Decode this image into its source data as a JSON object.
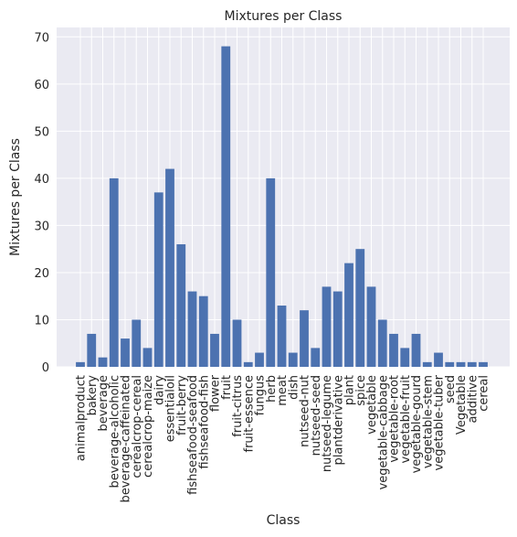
{
  "chart_data": {
    "type": "bar",
    "title": "Mixtures per Class",
    "xlabel": "Class",
    "ylabel": "Mixtures per Class",
    "ylim": [
      0,
      72
    ],
    "yticks": [
      0,
      10,
      20,
      30,
      40,
      50,
      60,
      70
    ],
    "grid": true,
    "bar_color": "#4c72b0",
    "background_color": "#eaeaf2",
    "categories": [
      "animalproduct",
      "bakery",
      "beverage",
      "beverage-alcoholic",
      "beverage-caffeinated",
      "cerealcrop-cereal",
      "cerealcrop-maize",
      "dairy",
      "essentialoil",
      "fruit-berry",
      "fishseafood-seafood",
      "fishseafood-fish",
      "flower",
      "fruit",
      "fruit-citrus",
      "fruit-essence",
      "fungus",
      "herb",
      "meat",
      "dish",
      "nutseed-nut",
      "nutseed-seed",
      "nutseed-legume",
      "plantderivative",
      "plant",
      "spice",
      "vegetable",
      "vegetable-cabbage",
      "vegetable-root",
      "vegetable-fruit",
      "vegetable-gourd",
      "vegetable-stem",
      "vegetable-tuber",
      "seed",
      "Vegetable",
      "additive",
      "cereal"
    ],
    "values": [
      1,
      7,
      2,
      40,
      6,
      10,
      4,
      37,
      42,
      26,
      16,
      15,
      7,
      68,
      10,
      1,
      3,
      40,
      13,
      3,
      12,
      4,
      17,
      16,
      22,
      25,
      17,
      10,
      7,
      4,
      7,
      1,
      3,
      1,
      1,
      1,
      1
    ]
  }
}
